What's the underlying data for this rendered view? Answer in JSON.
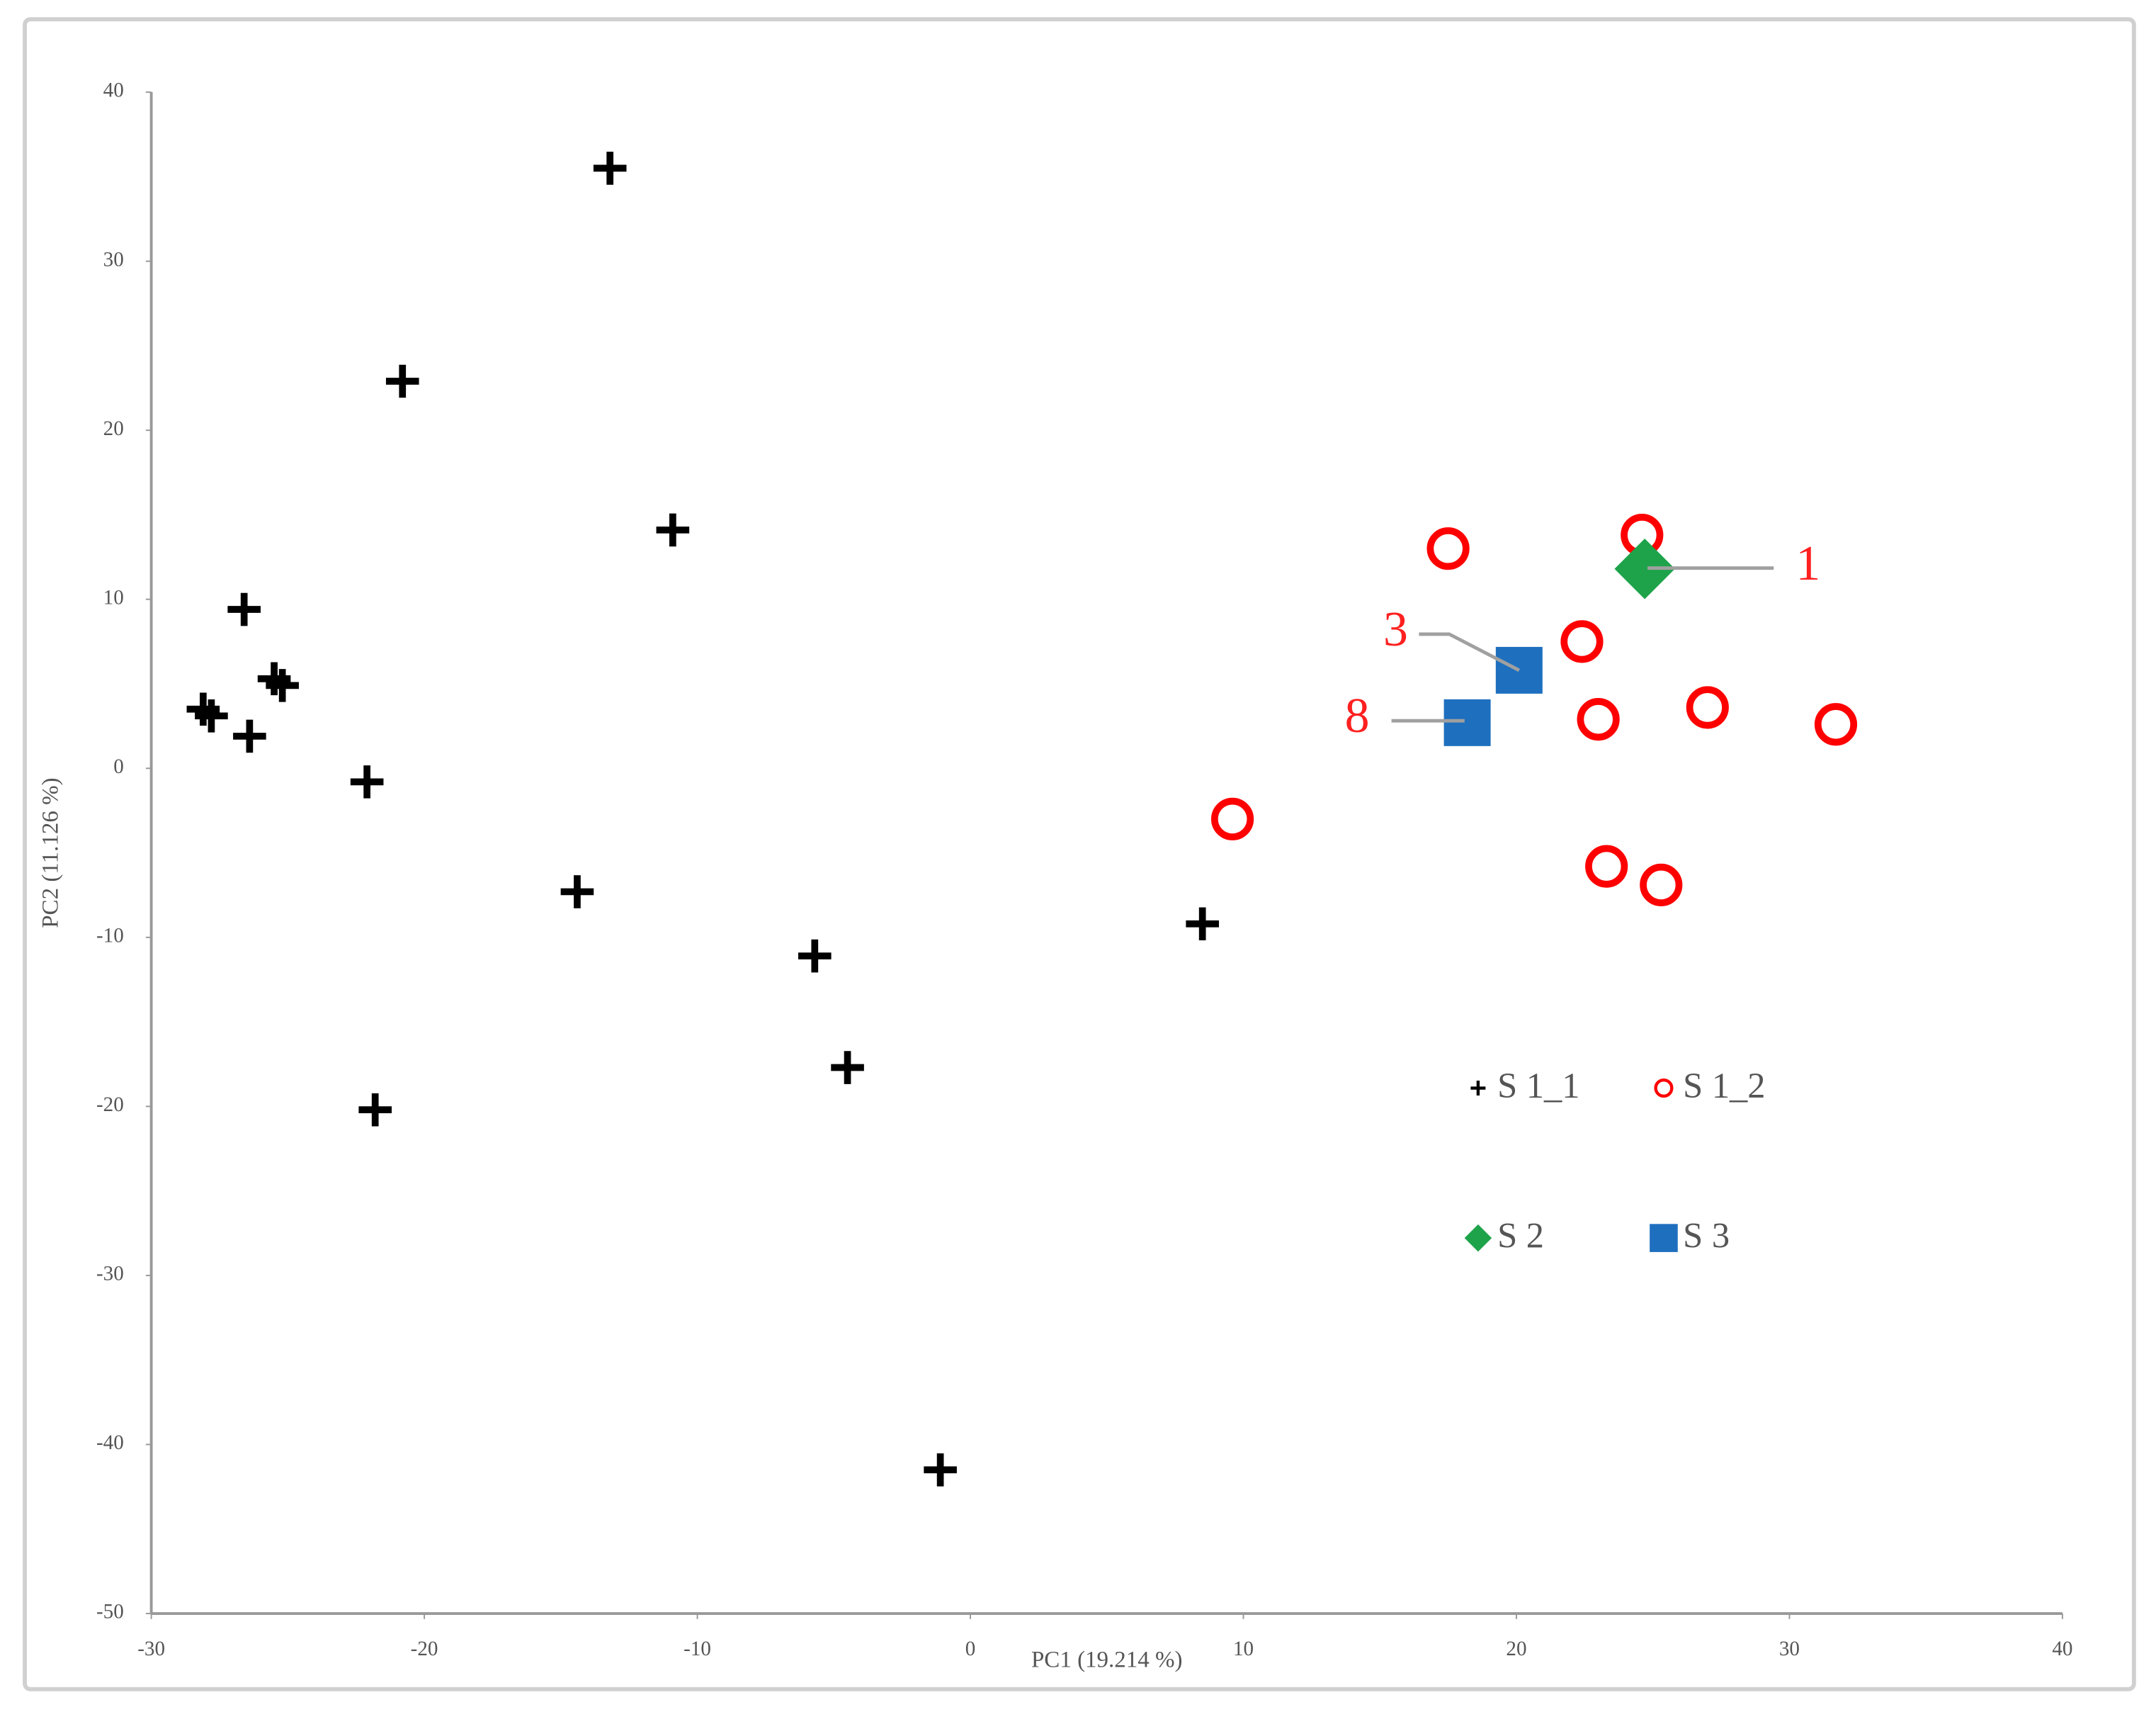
{
  "chart_data": {
    "type": "scatter",
    "x_label": "PC1 (19.214 %)",
    "y_label": "PC2 (11.126 %)",
    "xlim": [
      -30,
      40
    ],
    "xticks": [
      -30,
      -20,
      -10,
      0,
      10,
      20,
      30,
      40
    ],
    "ylim": [
      -50,
      40
    ],
    "yticks": [
      -50,
      -40,
      -30,
      -20,
      -10,
      0,
      10,
      20,
      30,
      40
    ],
    "grid": false,
    "series": [
      {
        "name": "S 1_1",
        "color": "#000000",
        "marker": "cross",
        "x": [
          -13.2,
          -20.8,
          -10.9,
          -26.6,
          -25.5,
          -25.2,
          -28.1,
          -27.8,
          -26.4,
          -22.1,
          -14.4,
          -5.7,
          -4.5,
          -21.8,
          -1.1,
          8.5
        ],
        "values": [
          35.5,
          22.9,
          14.1,
          9.4,
          5.3,
          4.9,
          3.5,
          3.1,
          1.9,
          -0.8,
          -7.3,
          -11.1,
          -17.7,
          -20.2,
          -41.5,
          -9.2
        ]
      },
      {
        "name": "S 1_2",
        "color": "#ff0000",
        "marker": "ring",
        "x": [
          17.5,
          24.6,
          22.4,
          23.0,
          27.0,
          31.7,
          9.6,
          23.3,
          25.3
        ],
        "values": [
          13.0,
          13.8,
          7.5,
          2.9,
          3.6,
          2.6,
          -3.0,
          -5.8,
          -6.9
        ]
      },
      {
        "name": "S 2",
        "color": "#1ea34a",
        "marker": "diamond",
        "x": [
          24.7
        ],
        "values": [
          11.8
        ]
      },
      {
        "name": "S 3",
        "color": "#1f6fbf",
        "marker": "square",
        "x": [
          20.1,
          18.2
        ],
        "values": [
          5.8,
          2.7
        ]
      }
    ],
    "annotations": [
      "1",
      "3",
      "8"
    ]
  }
}
